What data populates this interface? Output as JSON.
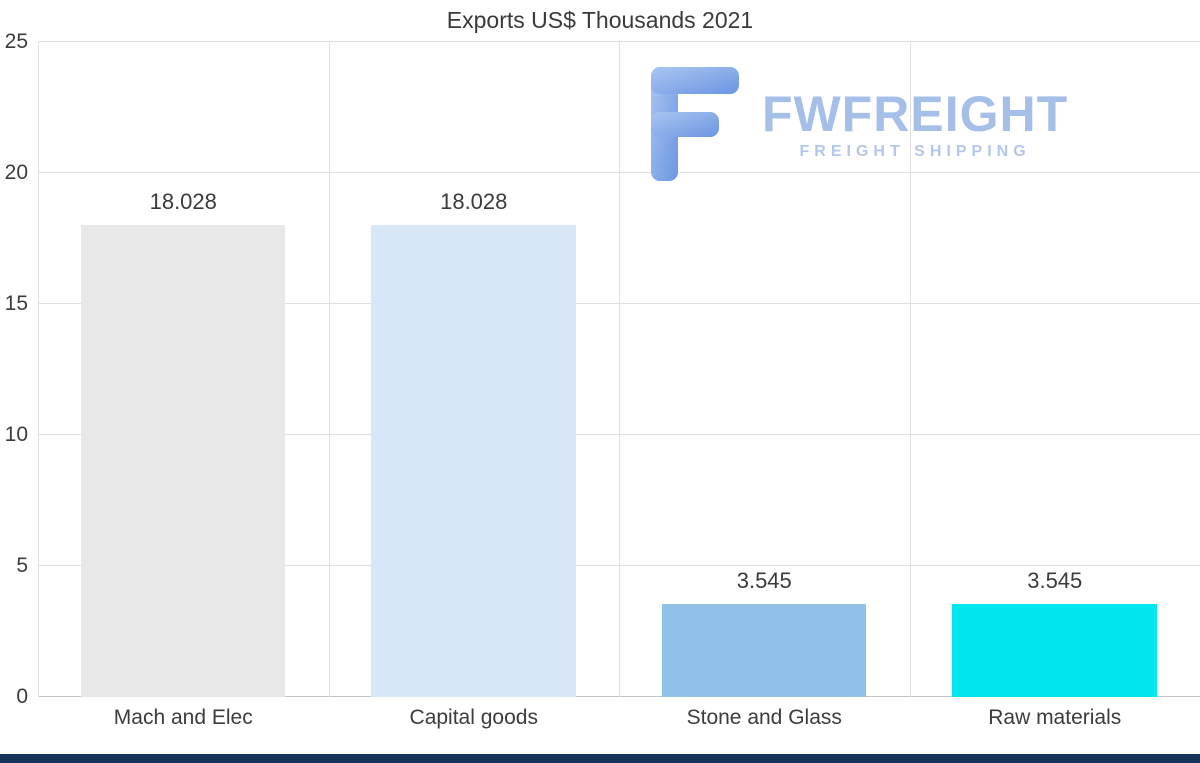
{
  "title": "Exports US$ Thousands 2021",
  "chart_data": {
    "type": "bar",
    "title": "Exports US$ Thousands 2021",
    "categories": [
      "Mach and Elec",
      "Capital goods",
      "Stone and Glass",
      "Raw materials"
    ],
    "values": [
      18.028,
      18.028,
      3.545,
      3.545
    ],
    "value_labels": [
      "18.028",
      "18.028",
      "3.545",
      "3.545"
    ],
    "bar_colors": [
      "#e8e8e8",
      "#d9e8f8",
      "#8fc1e9",
      "#00e8ee"
    ],
    "ylim": [
      0,
      25
    ],
    "yticks": [
      0,
      5,
      10,
      15,
      20,
      25
    ],
    "xlabel": "",
    "ylabel": "",
    "grid": "both",
    "legend": "none"
  },
  "logo": {
    "brand": "FWFREIGHT",
    "tagline": "FREIGHT SHIPPING",
    "brand_color": "#a5bfe8",
    "icon_color": "#7da3e8"
  },
  "colors": {
    "grid": "#e0e0e0",
    "axis": "#c4c4c4",
    "text": "#3c3c3c",
    "footer_bar": "#16335c",
    "background": "#ffffff"
  }
}
